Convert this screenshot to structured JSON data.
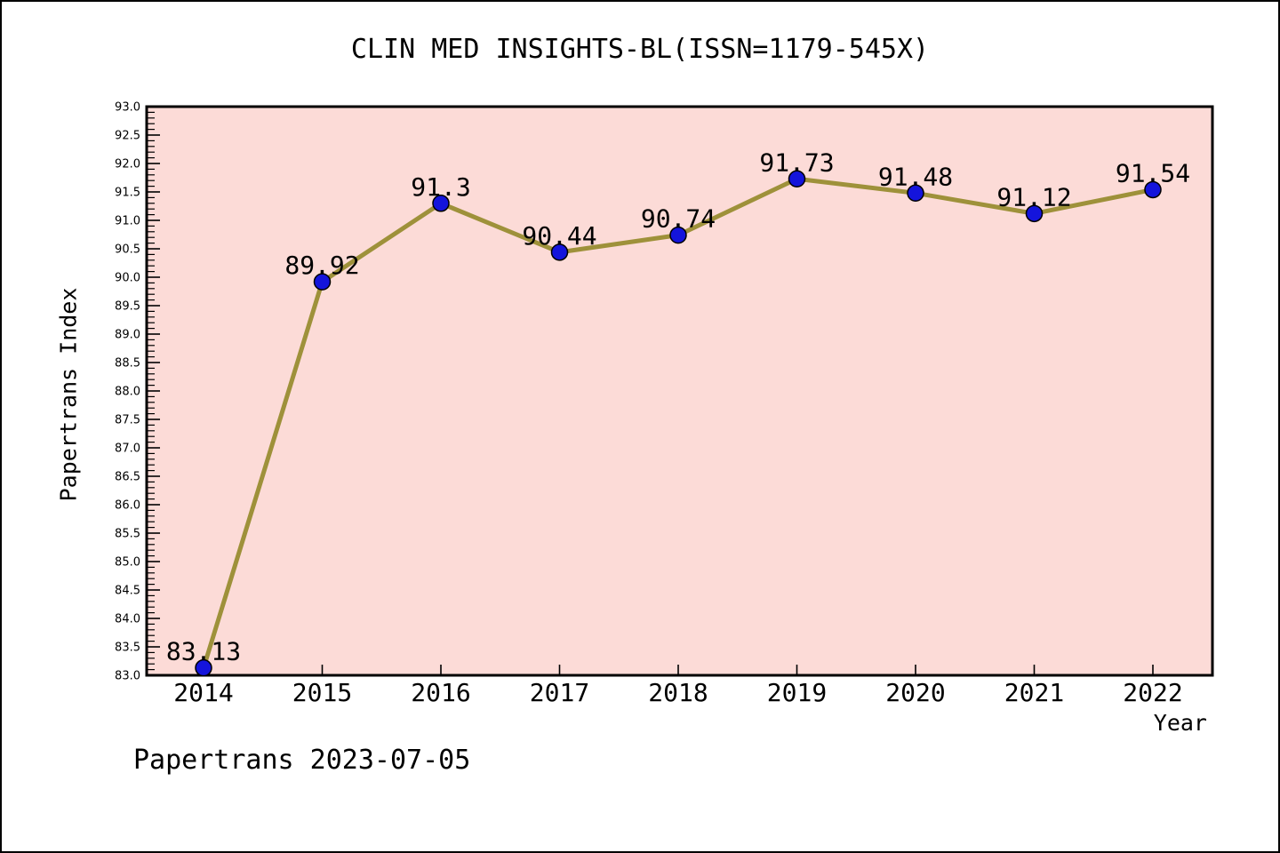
{
  "footer": {
    "text": "Papertrans 2023-07-05"
  },
  "chart_data": {
    "type": "line",
    "title": "CLIN MED INSIGHTS-BL(ISSN=1179-545X)",
    "xlabel": "Year",
    "ylabel": "Papertrans Index",
    "categories": [
      2014,
      2015,
      2016,
      2017,
      2018,
      2019,
      2020,
      2021,
      2022
    ],
    "values": [
      83.13,
      89.92,
      91.3,
      90.44,
      90.74,
      91.73,
      91.48,
      91.12,
      91.54
    ],
    "point_labels": [
      "83.13",
      "89.92",
      "91.3",
      "90.44",
      "90.74",
      "91.73",
      "91.48",
      "91.12",
      "91.54"
    ],
    "ylim": [
      83.0,
      93.0
    ],
    "ytick_step": 0.5,
    "ytick_minor_step": 0.1,
    "grid": false,
    "legend_position": "none",
    "colors": {
      "line": "#9e913a",
      "marker_fill": "#1414dc",
      "marker_edge": "#000000",
      "plot_background": "#fcdbd7",
      "figure_background": "#ffffff",
      "axis": "#000000",
      "text": "#000000"
    }
  }
}
